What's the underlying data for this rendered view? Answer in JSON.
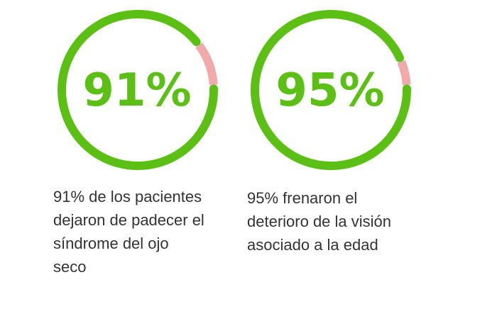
{
  "colors": {
    "green": "#5bbf14",
    "pink": "#f0aaaa",
    "text": "#333333"
  },
  "stats": [
    {
      "value": 91,
      "label": "91%",
      "description": "91% de los pacientes dejaron de padecer el síndrome del ojo seco"
    },
    {
      "value": 95,
      "label": "95%",
      "description": "95% frenaron el deterioro de la visión asociado a la edad"
    }
  ]
}
